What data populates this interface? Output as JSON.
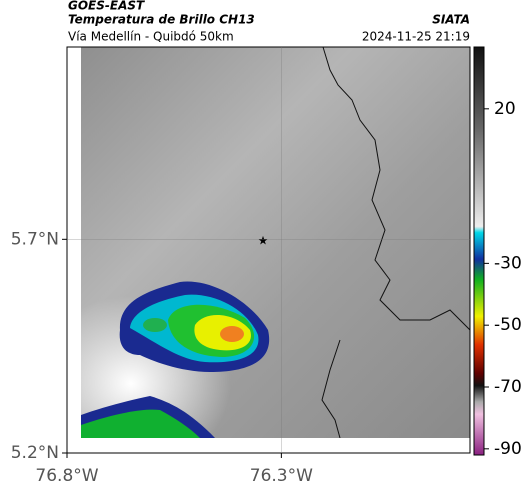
{
  "header": {
    "title": "GOES-EAST",
    "subtitle": "Temperatura de Brillo CH13",
    "source": "SIATA",
    "route": "Vía Medellín - Quibdó 50km",
    "timestamp": "2024-11-25 21:19"
  },
  "map": {
    "xlim": [
      -76.8,
      -75.86
    ],
    "ylim": [
      5.2,
      6.15
    ],
    "xticks": [
      {
        "value": -76.8,
        "label": "76.8°W"
      },
      {
        "value": -76.3,
        "label": "76.3°W"
      }
    ],
    "yticks": [
      {
        "value": 5.2,
        "label": "5.2°N"
      },
      {
        "value": 5.7,
        "label": "5.7°N"
      }
    ],
    "grid": true
  },
  "colorbar": {
    "lim": [
      -92,
      40
    ],
    "ticks": [
      20,
      -30,
      -50,
      -70,
      -90
    ]
  }
}
